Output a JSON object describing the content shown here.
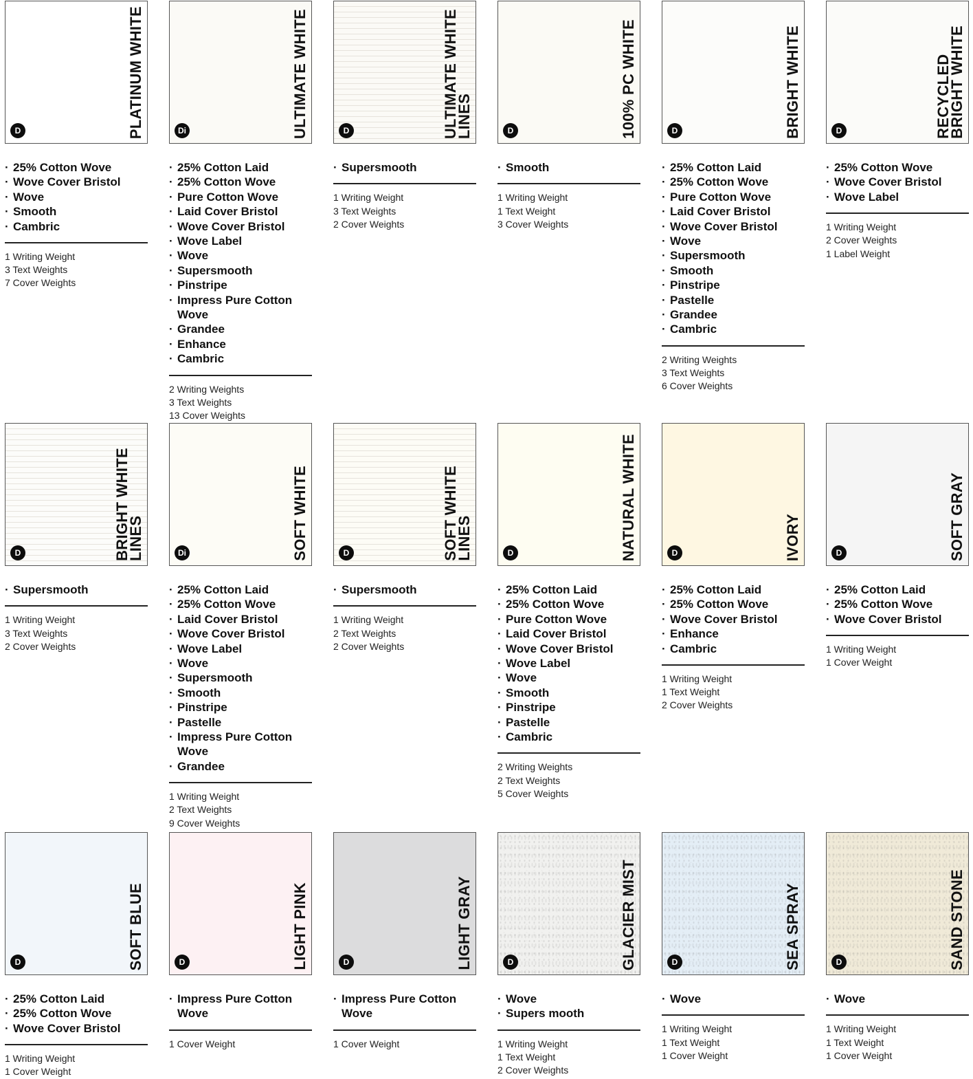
{
  "cards": [
    {
      "name": "PLATINUM WHITE",
      "logo": "D",
      "bg": "#ffffff",
      "texture": "plain",
      "finishes": [
        "25% Cotton Wove",
        "Wove Cover Bristol",
        "Wove",
        "Smooth",
        "Cambric"
      ],
      "weights": [
        "1 Writing Weight",
        "3 Text Weights",
        "7 Cover Weights"
      ]
    },
    {
      "name": "ULTIMATE WHITE",
      "logo": "Di",
      "bg": "#fbfaf6",
      "texture": "plain",
      "finishes": [
        "25% Cotton Laid",
        "25% Cotton Wove",
        "Pure Cotton Wove",
        "Laid Cover Bristol",
        "Wove Cover Bristol",
        "Wove Label",
        "Wove",
        "Supersmooth",
        "Pinstripe",
        "Impress Pure Cotton\nWove",
        "Grandee",
        "Enhance",
        "Cambric"
      ],
      "weights": [
        "2 Writing Weights",
        "3 Text Weights",
        "13 Cover Weights"
      ]
    },
    {
      "name": "ULTIMATE WHITE\nLINES",
      "logo": "D",
      "bg": "#fbfaf6",
      "texture": "lines",
      "finishes": [
        "Supersmooth"
      ],
      "weights": [
        "1 Writing Weight",
        "3 Text Weights",
        "2 Cover Weights"
      ]
    },
    {
      "name": "100% PC WHITE",
      "logo": "D",
      "bg": "#fbfaf5",
      "texture": "plain",
      "finishes": [
        "Smooth"
      ],
      "weights": [
        "1 Writing Weight",
        "1 Text Weight",
        "3 Cover Weights"
      ]
    },
    {
      "name": "BRIGHT WHITE",
      "logo": "D",
      "bg": "#fcfcfa",
      "texture": "plain",
      "finishes": [
        "25% Cotton Laid",
        "25% Cotton Wove",
        "Pure Cotton Wove",
        "Laid Cover Bristol",
        "Wove Cover Bristol",
        "Wove",
        "Supersmooth",
        "Smooth",
        "Pinstripe",
        "Pastelle",
        "Grandee",
        "Cambric"
      ],
      "weights": [
        "2 Writing Weights",
        "3 Text Weights",
        "6 Cover Weights"
      ]
    },
    {
      "name": "RECYCLED\nBRIGHT WHITE",
      "logo": "D",
      "bg": "#fbfbf9",
      "texture": "plain",
      "finishes": [
        "25% Cotton Wove",
        "Wove Cover Bristol",
        "Wove Label"
      ],
      "weights": [
        "1 Writing Weight",
        "2 Cover Weights",
        "1 Label Weight"
      ]
    },
    {
      "name": "BRIGHT WHITE\nLINES",
      "logo": "D",
      "bg": "#fcfcfa",
      "texture": "lines",
      "finishes": [
        "Supersmooth"
      ],
      "weights": [
        "1 Writing Weight",
        "3 Text Weights",
        "2 Cover Weights"
      ]
    },
    {
      "name": "SOFT WHITE",
      "logo": "Di",
      "bg": "#fdfcf6",
      "texture": "plain",
      "finishes": [
        "25% Cotton Laid",
        "25% Cotton Wove",
        "Laid Cover Bristol",
        "Wove Cover Bristol",
        "Wove Label",
        "Wove",
        "Supersmooth",
        "Smooth",
        "Pinstripe",
        "Pastelle",
        "Impress Pure Cotton\nWove",
        "Grandee"
      ],
      "weights": [
        "1 Writing Weight",
        "2 Text Weights",
        "9 Cover Weights"
      ]
    },
    {
      "name": "SOFT WHITE\nLINES",
      "logo": "D",
      "bg": "#fdfcf6",
      "texture": "lines",
      "finishes": [
        "Supersmooth"
      ],
      "weights": [
        "1 Writing Weight",
        "2 Text Weights",
        "2 Cover Weights"
      ]
    },
    {
      "name": "NATURAL WHITE",
      "logo": "D",
      "bg": "#fefdf2",
      "texture": "plain",
      "finishes": [
        "25% Cotton Laid",
        "25% Cotton Wove",
        "Pure Cotton Wove",
        "Laid Cover Bristol",
        "Wove Cover Bristol",
        "Wove Label",
        "Wove",
        "Smooth",
        "Pinstripe",
        "Pastelle",
        "Cambric"
      ],
      "weights": [
        "2 Writing Weights",
        "2 Text Weights",
        "5 Cover Weights"
      ]
    },
    {
      "name": "IVORY",
      "logo": "D",
      "bg": "#fef7e2",
      "texture": "plain",
      "finishes": [
        "25% Cotton Laid",
        "25% Cotton Wove",
        "Wove Cover Bristol",
        "Enhance",
        "Cambric"
      ],
      "weights": [
        "1 Writing Weight",
        "1 Text Weight",
        "2 Cover Weights"
      ]
    },
    {
      "name": "SOFT GRAY",
      "logo": "D",
      "bg": "#f5f5f5",
      "texture": "plain",
      "finishes": [
        "25% Cotton Laid",
        "25% Cotton Wove",
        "Wove Cover Bristol"
      ],
      "weights": [
        "1 Writing Weight",
        "1 Cover Weight"
      ]
    },
    {
      "name": "SOFT BLUE",
      "logo": "D",
      "bg": "#f2f6fa",
      "texture": "plain",
      "finishes": [
        "25% Cotton Laid",
        "25% Cotton Wove",
        "Wove Cover Bristol"
      ],
      "weights": [
        "1 Writing Weight",
        "1 Cover Weight"
      ]
    },
    {
      "name": "LIGHT PINK",
      "logo": "D",
      "bg": "#fdf1f3",
      "texture": "plain",
      "finishes": [
        "Impress Pure Cotton\nWove"
      ],
      "weights": [
        "1 Cover Weight"
      ]
    },
    {
      "name": "LIGHT GRAY",
      "logo": "D",
      "bg": "#dcdcdd",
      "texture": "plain",
      "finishes": [
        "Impress Pure Cotton\nWove"
      ],
      "weights": [
        "1 Cover Weight"
      ]
    },
    {
      "name": "GLACIER MIST",
      "logo": "D",
      "bg": "#f1f1ef",
      "texture": "speck",
      "finishes": [
        "Wove",
        "Supers mooth"
      ],
      "weights": [
        "1 Writing Weight",
        "1 Text Weight",
        "2 Cover Weights"
      ]
    },
    {
      "name": "SEA SPRAY",
      "logo": "D",
      "bg": "#e4eef6",
      "texture": "speck",
      "finishes": [
        "Wove"
      ],
      "weights": [
        "1 Writing Weight",
        "1 Text Weight",
        "1 Cover Weight"
      ]
    },
    {
      "name": "SAND STONE",
      "logo": "D",
      "bg": "#f0ead8",
      "texture": "speck",
      "finishes": [
        "Wove"
      ],
      "weights": [
        "1 Writing Weight",
        "1 Text Weight",
        "1 Cover Weight"
      ]
    }
  ]
}
